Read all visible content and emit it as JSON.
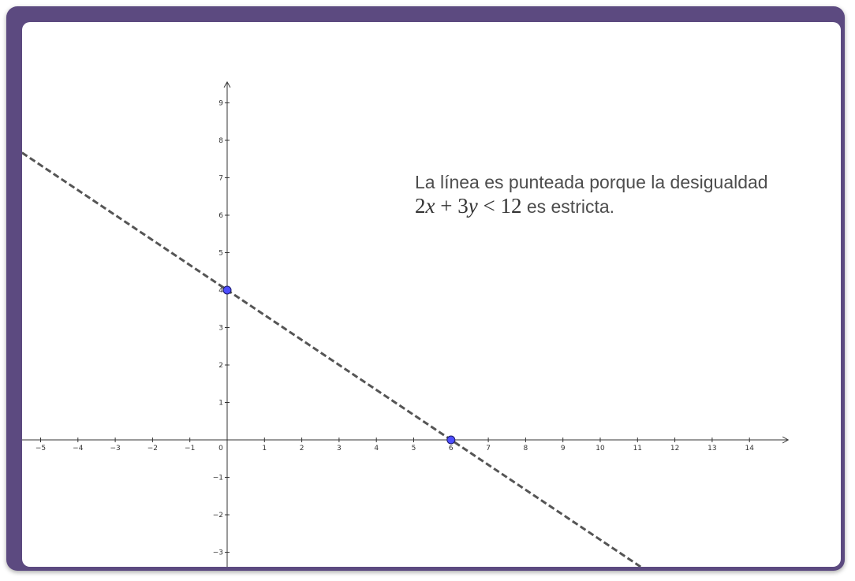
{
  "caption": {
    "line1": "La línea es punteada porque la desigualdad",
    "math": {
      "coef_x": "2",
      "var_x": "x",
      "plus": " + ",
      "coef_y": "3",
      "var_y": "y",
      "op": " < ",
      "rhs": "12"
    },
    "line2_suffix": " es estricta."
  },
  "chart_data": {
    "type": "line",
    "title": "",
    "xlabel": "",
    "ylabel": "",
    "xlim": [
      -5.5,
      15.1
    ],
    "ylim": [
      -3.4,
      9.6
    ],
    "x_ticks": [
      -5,
      -4,
      -3,
      -2,
      -1,
      0,
      1,
      2,
      3,
      4,
      5,
      6,
      7,
      8,
      9,
      10,
      11,
      12,
      13,
      14
    ],
    "y_ticks": [
      -3,
      -2,
      -1,
      1,
      2,
      3,
      4,
      5,
      6,
      7,
      8,
      9
    ],
    "grid": false,
    "series": [
      {
        "equation": "2x + 3y = 12",
        "style": "dashed",
        "color": "#555555",
        "x": [
          -5.5,
          11.1
        ],
        "y": [
          7.67,
          -3.4
        ]
      }
    ],
    "points": [
      {
        "x": 0,
        "y": 4,
        "color": "#4d4dff"
      },
      {
        "x": 6,
        "y": 0,
        "color": "#4d4dff"
      }
    ]
  }
}
